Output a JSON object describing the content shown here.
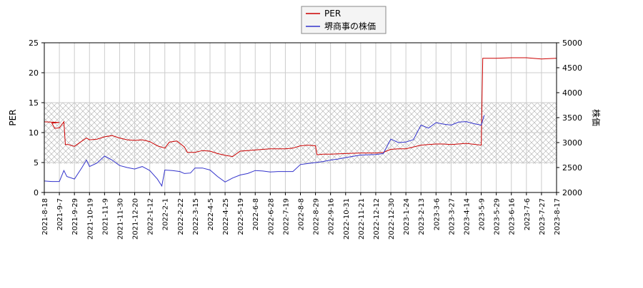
{
  "chart_data": {
    "type": "line",
    "legend": {
      "placement": "top-center",
      "entries": [
        "PER",
        "堺商事の株価"
      ]
    },
    "grid": true,
    "y_left": {
      "label": "PER",
      "lim": [
        0,
        25
      ],
      "ticks": [
        "0",
        "5",
        "10",
        "15",
        "20",
        "25"
      ]
    },
    "y_right": {
      "label": "株価",
      "lim": [
        2000,
        5000
      ],
      "ticks": [
        "2000",
        "2500",
        "3000",
        "3500",
        "4000",
        "4500",
        "5000"
      ]
    },
    "x_ticks": [
      "2021-8-18",
      "2021-9-7",
      "2021-9-29",
      "2021-10-19",
      "2021-11-9",
      "2021-11-30",
      "2021-12-20",
      "2022-1-12",
      "2022-2-1",
      "2022-2-22",
      "2022-3-15",
      "2022-4-5",
      "2022-4-25",
      "2022-5-19",
      "2022-6-8",
      "2022-6-28",
      "2022-7-19",
      "2022-8-8",
      "2022-8-29",
      "2022-9-16",
      "2022-10-31",
      "2022-11-21",
      "2022-12-12",
      "2022-12-30",
      "2023-1-24",
      "2023-2-13",
      "2023-3-6",
      "2023-3-27",
      "2023-4-14",
      "2023-5-9",
      "2023-5-29",
      "2023-6-16",
      "2023-7-6",
      "2023-7-27",
      "2023-8-17"
    ],
    "shaded_band": {
      "axis": "y_left",
      "from": 4.8,
      "to": 15
    },
    "series": [
      {
        "name": "PER",
        "color": "#cc0000",
        "axis": "y_left",
        "points": [
          [
            0,
            11.8
          ],
          [
            1,
            11.7
          ],
          [
            0.5,
            11.6
          ],
          [
            0.7,
            10.7
          ],
          [
            1,
            10.8
          ],
          [
            1.3,
            11.8
          ],
          [
            1.4,
            8.0
          ],
          [
            1.6,
            8.0
          ],
          [
            2,
            7.7
          ],
          [
            2.5,
            8.6
          ],
          [
            2.8,
            9.1
          ],
          [
            3,
            8.8
          ],
          [
            3.5,
            8.9
          ],
          [
            4,
            9.3
          ],
          [
            4.5,
            9.5
          ],
          [
            5,
            9.1
          ],
          [
            5.5,
            8.8
          ],
          [
            6,
            8.7
          ],
          [
            6.5,
            8.8
          ],
          [
            7,
            8.5
          ],
          [
            7.5,
            7.8
          ],
          [
            8,
            7.4
          ],
          [
            8.3,
            8.4
          ],
          [
            8.8,
            8.6
          ],
          [
            9.3,
            7.6
          ],
          [
            9.5,
            6.7
          ],
          [
            10,
            6.7
          ],
          [
            10.5,
            7.0
          ],
          [
            11,
            6.9
          ],
          [
            11.5,
            6.5
          ],
          [
            12,
            6.2
          ],
          [
            12.5,
            6.0
          ],
          [
            13,
            6.9
          ],
          [
            13.5,
            7.0
          ],
          [
            14,
            7.1
          ],
          [
            14.5,
            7.2
          ],
          [
            15,
            7.3
          ],
          [
            15.5,
            7.3
          ],
          [
            16,
            7.3
          ],
          [
            16.5,
            7.4
          ],
          [
            17,
            7.8
          ],
          [
            17.5,
            7.9
          ],
          [
            18,
            7.8
          ],
          [
            18.1,
            6.3
          ],
          [
            18.5,
            6.4
          ],
          [
            19,
            6.4
          ],
          [
            20,
            6.5
          ],
          [
            21,
            6.6
          ],
          [
            22,
            6.6
          ],
          [
            22.5,
            6.7
          ],
          [
            23,
            7.2
          ],
          [
            23.5,
            7.3
          ],
          [
            24,
            7.3
          ],
          [
            25,
            7.9
          ],
          [
            25.5,
            8.0
          ],
          [
            26,
            8.1
          ],
          [
            26.5,
            8.1
          ],
          [
            27,
            8.0
          ],
          [
            28,
            8.2
          ],
          [
            29,
            7.9
          ],
          [
            29.1,
            22.4
          ],
          [
            30,
            22.4
          ],
          [
            31,
            22.5
          ],
          [
            32,
            22.5
          ],
          [
            33,
            22.3
          ],
          [
            34,
            22.4
          ]
        ]
      },
      {
        "name": "堺商事の株価",
        "color": "#3333cc",
        "axis": "y_right",
        "points": [
          [
            0,
            2230
          ],
          [
            0.5,
            2220
          ],
          [
            1,
            2220
          ],
          [
            1.3,
            2440
          ],
          [
            1.5,
            2320
          ],
          [
            2,
            2270
          ],
          [
            2.5,
            2500
          ],
          [
            2.8,
            2650
          ],
          [
            3,
            2520
          ],
          [
            3.5,
            2590
          ],
          [
            4,
            2730
          ],
          [
            4.5,
            2650
          ],
          [
            5,
            2540
          ],
          [
            5.5,
            2500
          ],
          [
            6,
            2470
          ],
          [
            6.5,
            2520
          ],
          [
            7,
            2440
          ],
          [
            7.5,
            2270
          ],
          [
            7.8,
            2130
          ],
          [
            8,
            2450
          ],
          [
            8.5,
            2440
          ],
          [
            9,
            2420
          ],
          [
            9.3,
            2380
          ],
          [
            9.7,
            2390
          ],
          [
            10,
            2490
          ],
          [
            10.5,
            2490
          ],
          [
            11,
            2450
          ],
          [
            11.5,
            2320
          ],
          [
            12,
            2210
          ],
          [
            12.5,
            2290
          ],
          [
            13,
            2350
          ],
          [
            13.5,
            2380
          ],
          [
            14,
            2440
          ],
          [
            14.5,
            2430
          ],
          [
            15,
            2410
          ],
          [
            15.5,
            2420
          ],
          [
            16,
            2420
          ],
          [
            16.5,
            2420
          ],
          [
            17,
            2560
          ],
          [
            17.5,
            2580
          ],
          [
            18,
            2600
          ],
          [
            18.5,
            2620
          ],
          [
            19,
            2650
          ],
          [
            19.5,
            2670
          ],
          [
            20,
            2700
          ],
          [
            21,
            2750
          ],
          [
            22,
            2760
          ],
          [
            22.5,
            2780
          ],
          [
            23,
            3070
          ],
          [
            23.5,
            3000
          ],
          [
            24,
            3010
          ],
          [
            24.5,
            3060
          ],
          [
            25,
            3350
          ],
          [
            25.5,
            3290
          ],
          [
            26,
            3400
          ],
          [
            26.5,
            3370
          ],
          [
            27,
            3350
          ],
          [
            27.5,
            3410
          ],
          [
            28,
            3420
          ],
          [
            28.5,
            3380
          ],
          [
            29,
            3350
          ],
          [
            29.2,
            3550
          ]
        ]
      }
    ]
  }
}
